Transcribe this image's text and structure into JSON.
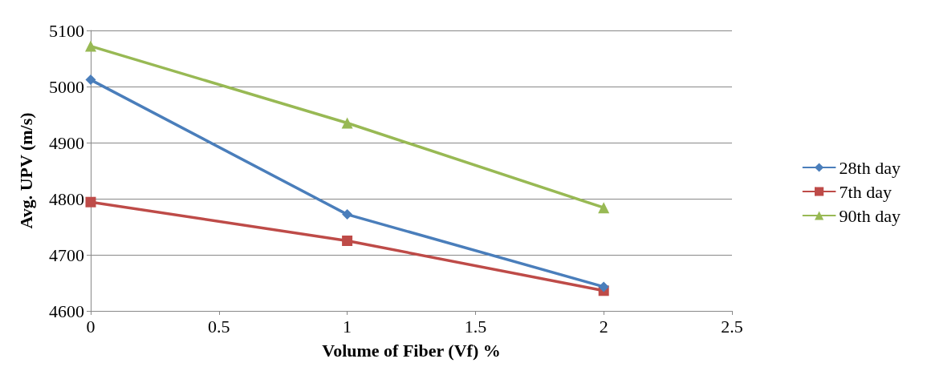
{
  "chart_data": {
    "type": "line",
    "xlabel": "Volume of Fiber (Vf) %",
    "ylabel": "Avg. UPV (m/s)",
    "x": [
      0,
      1,
      2
    ],
    "series": [
      {
        "name": "28th day",
        "color": "#4a7ebb",
        "marker": "diamond",
        "values": [
          5012,
          4772,
          4643
        ]
      },
      {
        "name": "7th day",
        "color": "#be4b48",
        "marker": "square",
        "values": [
          4794,
          4725,
          4636
        ]
      },
      {
        "name": "90th day",
        "color": "#98b954",
        "marker": "triangle",
        "values": [
          5072,
          4935,
          4784
        ]
      }
    ],
    "xlim": [
      0,
      2.5
    ],
    "xticks": [
      0,
      0.5,
      1,
      1.5,
      2,
      2.5
    ],
    "ylim": [
      4600,
      5100
    ],
    "yticks": [
      4600,
      4700,
      4800,
      4900,
      5000,
      5100
    ],
    "grid": "y",
    "legend": "right",
    "line_style": "solid"
  }
}
